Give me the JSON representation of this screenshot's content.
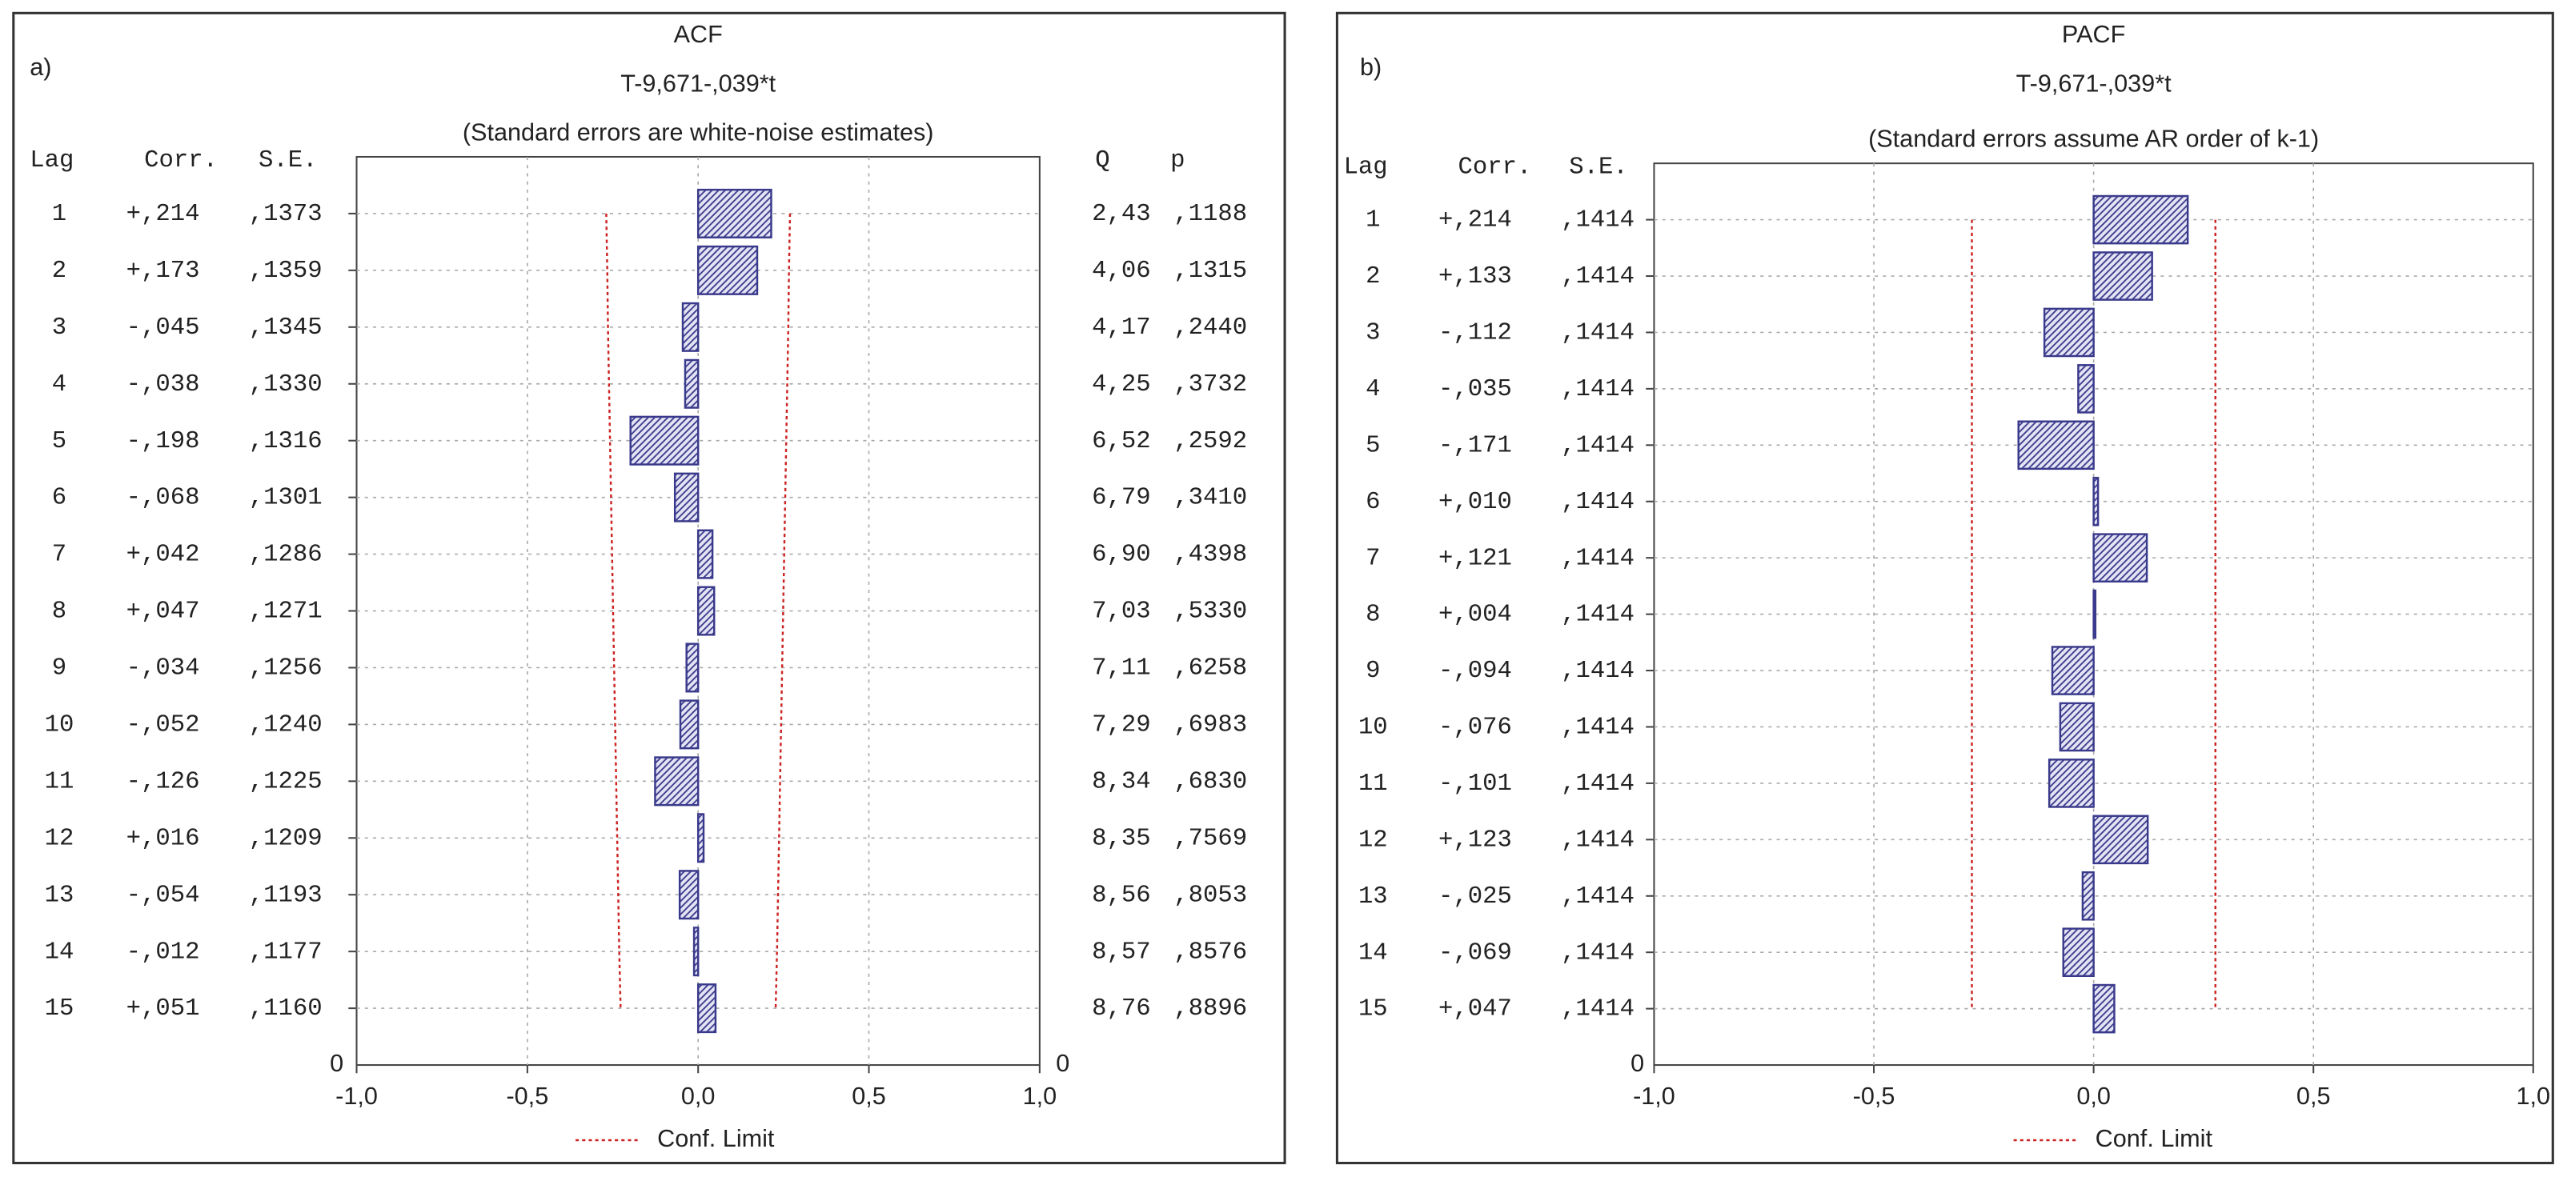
{
  "chart_data": [
    {
      "type": "bar",
      "orientation": "horizontal",
      "panel_label": "a)",
      "title": "ACF",
      "subtitle": "T-9,671-,039*t",
      "note": "(Standard errors are white-noise estimates)",
      "column_headers": {
        "lag": "Lag",
        "corr": "Corr.",
        "se": "S.E.",
        "q": "Q",
        "p": "p"
      },
      "categories": [
        "1",
        "2",
        "3",
        "4",
        "5",
        "6",
        "7",
        "8",
        "9",
        "10",
        "11",
        "12",
        "13",
        "14",
        "15"
      ],
      "baseline_label": "0",
      "baseline_label_right": "0",
      "values": [
        0.214,
        0.173,
        -0.045,
        -0.038,
        -0.198,
        -0.068,
        0.042,
        0.047,
        -0.034,
        -0.052,
        -0.126,
        0.016,
        -0.054,
        -0.012,
        0.051
      ],
      "value_labels": [
        "+,214",
        "+,173",
        "-,045",
        "-,038",
        "-,198",
        "-,068",
        "+,042",
        "+,047",
        "-,034",
        "-,052",
        "-,126",
        "+,016",
        "-,054",
        "-,012",
        "+,051"
      ],
      "color": "#3a3a8c",
      "se": {
        "values": [
          0.1373,
          0.1359,
          0.1345,
          0.133,
          0.1316,
          0.1301,
          0.1286,
          0.1271,
          0.1256,
          0.124,
          0.1225,
          0.1209,
          0.1193,
          0.1177,
          0.116
        ],
        "value_labels": [
          ",1373",
          ",1359",
          ",1345",
          ",1330",
          ",1316",
          ",1301",
          ",1286",
          ",1271",
          ",1256",
          ",1240",
          ",1225",
          ",1209",
          ",1193",
          ",1177",
          ",1160"
        ]
      },
      "q": {
        "values": [
          2.43,
          4.06,
          4.17,
          4.25,
          6.52,
          6.79,
          6.9,
          7.03,
          7.11,
          7.29,
          8.34,
          8.35,
          8.56,
          8.57,
          8.76
        ],
        "value_labels": [
          "2,43",
          "4,06",
          "4,17",
          "4,25",
          "6,52",
          "6,79",
          "6,90",
          "7,03",
          "7,11",
          "7,29",
          "8,34",
          "8,35",
          "8,56",
          "8,57",
          "8,76"
        ]
      },
      "p": {
        "values": [
          0.1188,
          0.1315,
          0.244,
          0.3732,
          0.2592,
          0.341,
          0.4398,
          0.533,
          0.6258,
          0.6983,
          0.683,
          0.7569,
          0.8053,
          0.8576,
          0.8896
        ],
        "value_labels": [
          ",1188",
          ",1315",
          ",2440",
          ",3732",
          ",2592",
          ",3410",
          ",4398",
          ",5330",
          ",6258",
          ",6983",
          ",6830",
          ",7569",
          ",8053",
          ",8576",
          ",8896"
        ]
      },
      "conf_limit": {
        "name": "Conf. Limit",
        "color": "#cc2222",
        "values": [
          0.269,
          0.266,
          0.264,
          0.261,
          0.258,
          0.255,
          0.252,
          0.249,
          0.246,
          0.243,
          0.24,
          0.237,
          0.234,
          0.231,
          0.227
        ]
      },
      "xlim": [
        -1,
        1
      ],
      "xticks": [
        {
          "value": -1,
          "label": "-1,0"
        },
        {
          "value": -0.5,
          "label": "-0,5"
        },
        {
          "value": 0,
          "label": "0,0"
        },
        {
          "value": 0.5,
          "label": "0,5"
        },
        {
          "value": 1,
          "label": "1,0"
        }
      ],
      "grid": true
    },
    {
      "type": "bar",
      "orientation": "horizontal",
      "panel_label": "b)",
      "title": "PACF",
      "subtitle": "T-9,671-,039*t",
      "note": "(Standard errors assume AR order of k-1)",
      "column_headers": {
        "lag": "Lag",
        "corr": "Corr.",
        "se": "S.E."
      },
      "categories": [
        "1",
        "2",
        "3",
        "4",
        "5",
        "6",
        "7",
        "8",
        "9",
        "10",
        "11",
        "12",
        "13",
        "14",
        "15"
      ],
      "baseline_label": "0",
      "values": [
        0.214,
        0.133,
        -0.112,
        -0.035,
        -0.171,
        0.01,
        0.121,
        0.004,
        -0.094,
        -0.076,
        -0.101,
        0.123,
        -0.025,
        -0.069,
        0.047
      ],
      "value_labels": [
        "+,214",
        "+,133",
        "-,112",
        "-,035",
        "-,171",
        "+,010",
        "+,121",
        "+,004",
        "-,094",
        "-,076",
        "-,101",
        "+,123",
        "-,025",
        "-,069",
        "+,047"
      ],
      "color": "#3a3a8c",
      "se": {
        "values": [
          0.1414,
          0.1414,
          0.1414,
          0.1414,
          0.1414,
          0.1414,
          0.1414,
          0.1414,
          0.1414,
          0.1414,
          0.1414,
          0.1414,
          0.1414,
          0.1414,
          0.1414
        ],
        "value_labels": [
          ",1414",
          ",1414",
          ",1414",
          ",1414",
          ",1414",
          ",1414",
          ",1414",
          ",1414",
          ",1414",
          ",1414",
          ",1414",
          ",1414",
          ",1414",
          ",1414",
          ",1414"
        ]
      },
      "conf_limit": {
        "name": "Conf. Limit",
        "color": "#cc2222",
        "values": [
          0.277,
          0.277,
          0.277,
          0.277,
          0.277,
          0.277,
          0.277,
          0.277,
          0.277,
          0.277,
          0.277,
          0.277,
          0.277,
          0.277,
          0.277
        ]
      },
      "xlim": [
        -1,
        1
      ],
      "xticks": [
        {
          "value": -1,
          "label": "-1,0"
        },
        {
          "value": -0.5,
          "label": "-0,5"
        },
        {
          "value": 0,
          "label": "0,0"
        },
        {
          "value": 0.5,
          "label": "0,5"
        },
        {
          "value": 1,
          "label": "1,0"
        }
      ],
      "grid": true
    }
  ]
}
